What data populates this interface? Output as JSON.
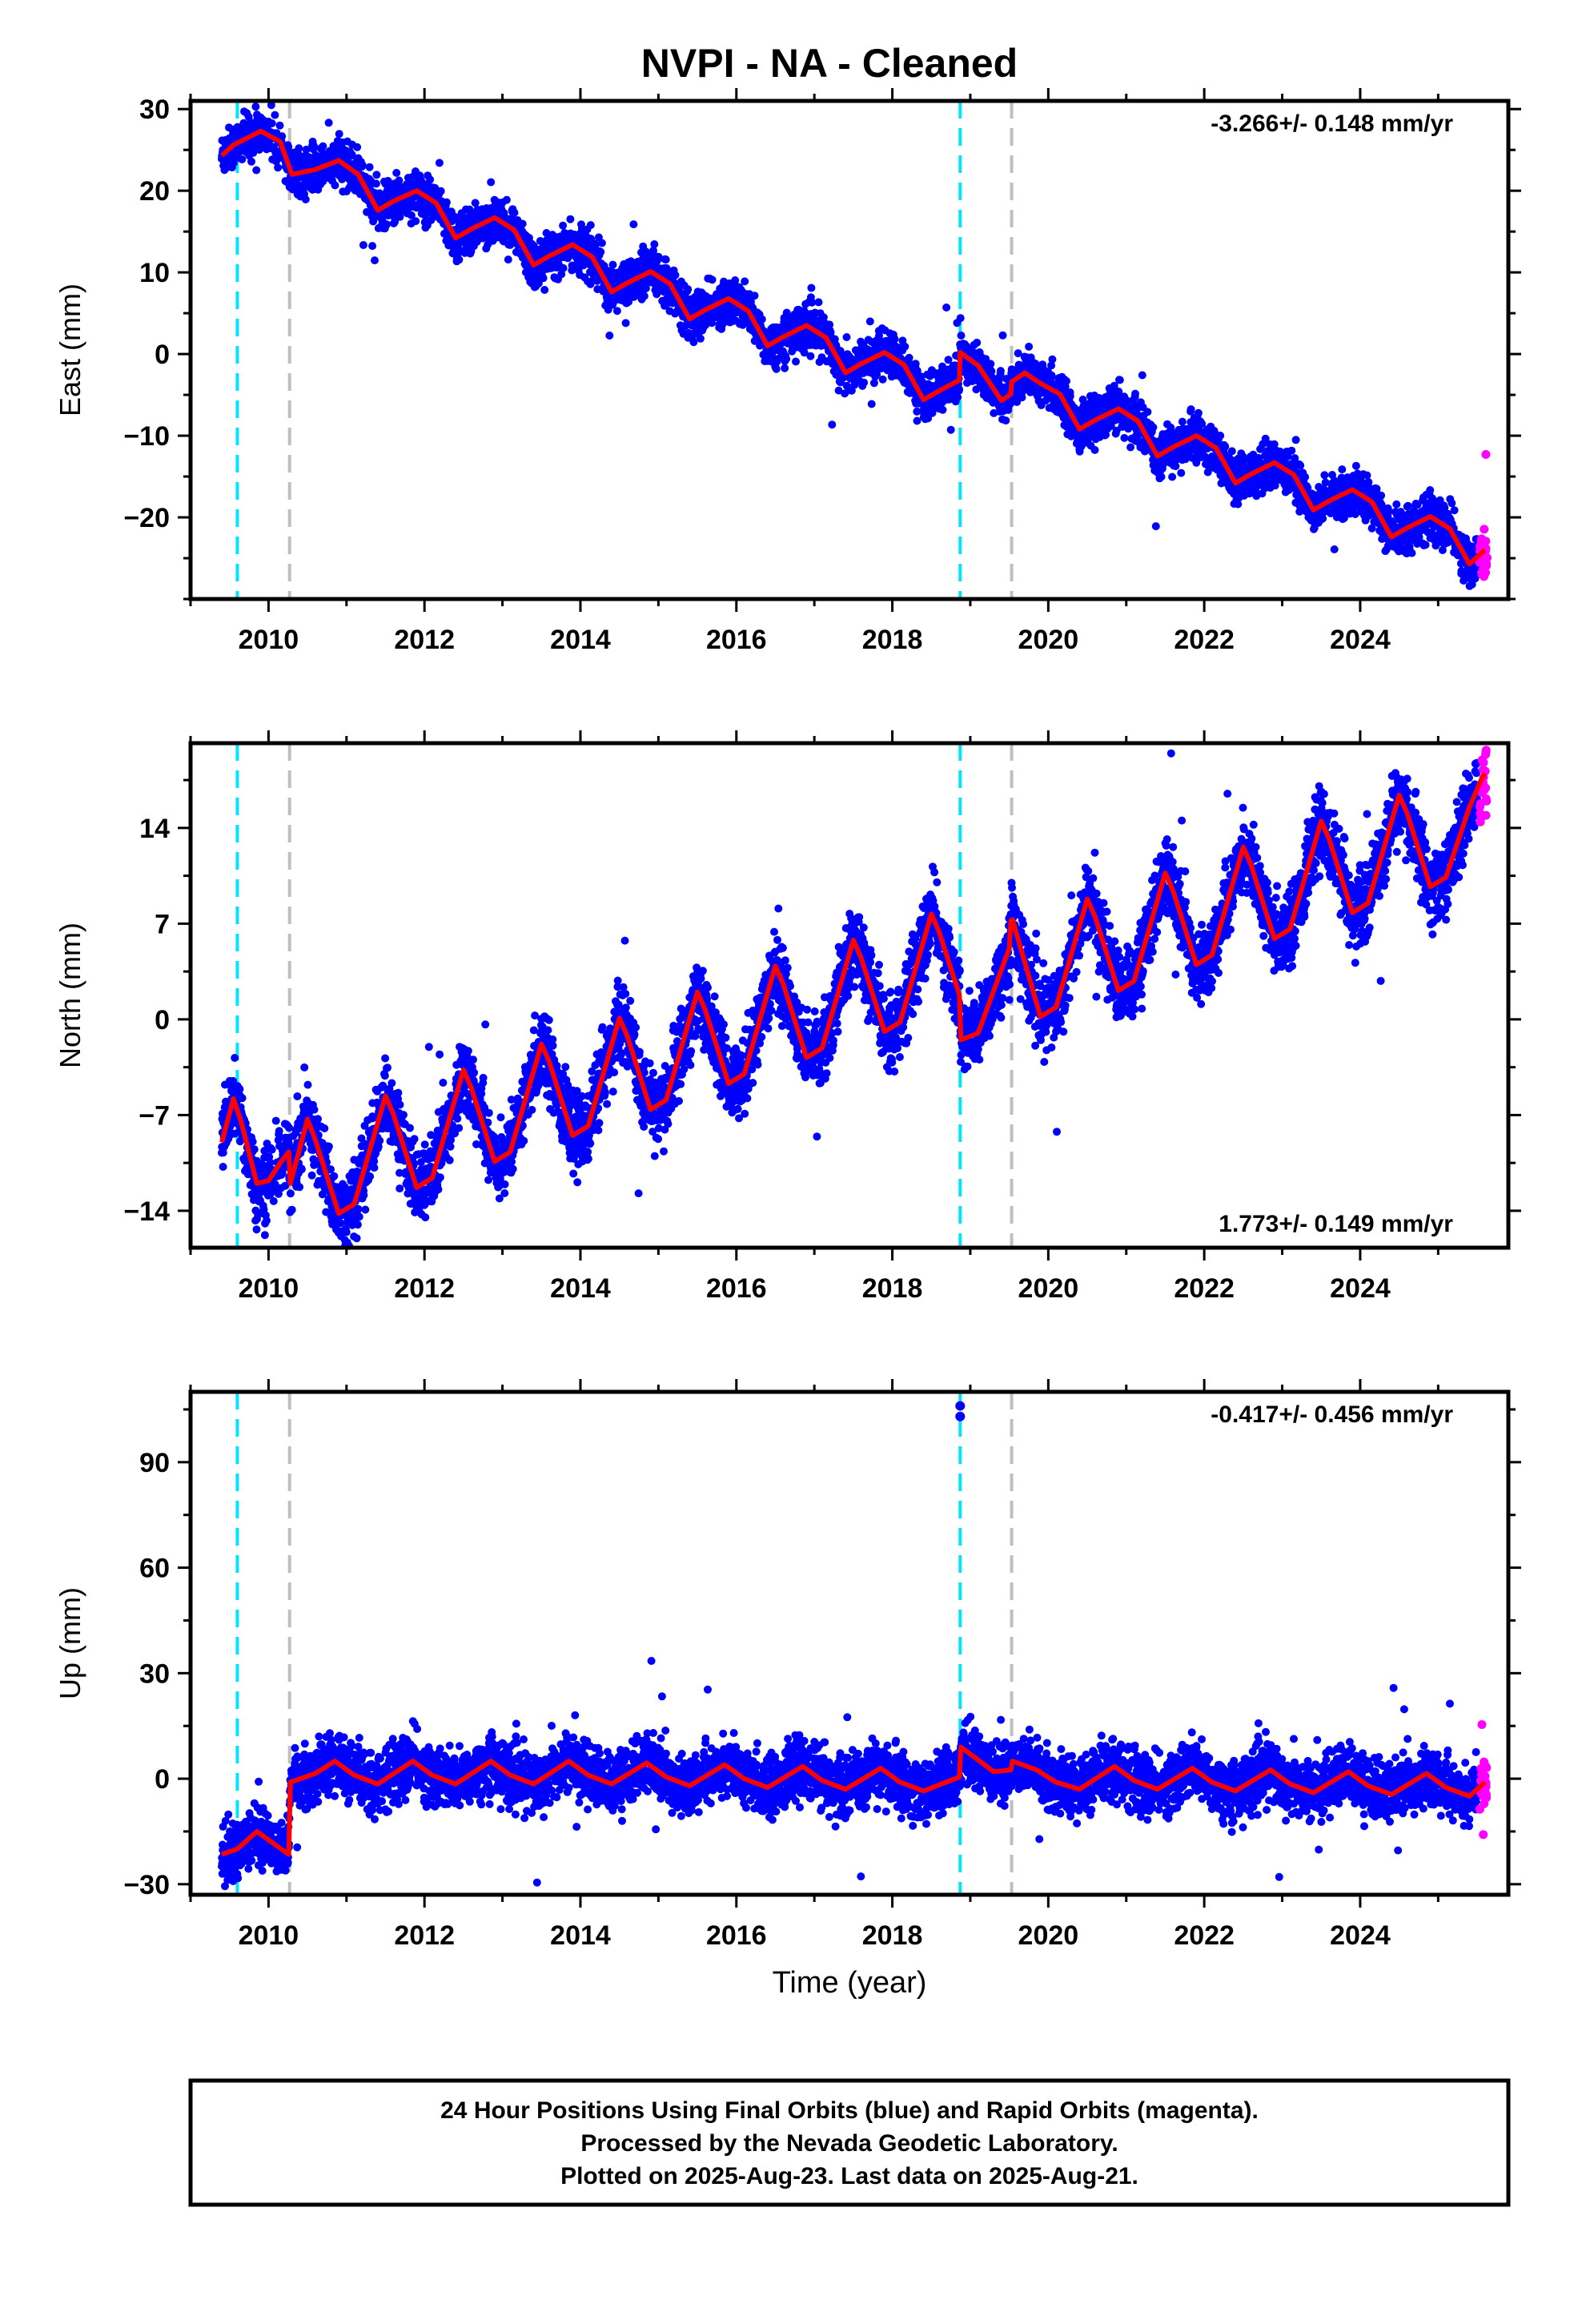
{
  "title": "NVPI  - NA - Cleaned",
  "footer": {
    "line1": "24 Hour Positions Using Final Orbits (blue) and Rapid Orbits (magenta).",
    "line2": "Processed by the Nevada Geodetic Laboratory.",
    "line3": "Plotted on 2025-Aug-23. Last data on 2025-Aug-21."
  },
  "colors": {
    "final_orbits": "#0000ff",
    "rapid_orbits": "#ff00ff",
    "model_fit": "#ff0000",
    "equipment_change": "#00e5ff",
    "other_event": "#bfbfbf"
  },
  "chart_data": [
    {
      "type": "scatter",
      "ylabel": "East (mm)",
      "xlabel": "",
      "rate_label": "-3.266+/- 0.148 mm/yr",
      "rate_value": -3.266,
      "rate_sigma": 0.148,
      "xlim": [
        2009.0,
        2025.9
      ],
      "ylim": [
        -30,
        31
      ],
      "x_ticks": [
        2010,
        2012,
        2014,
        2016,
        2018,
        2020,
        2022,
        2024
      ],
      "y_ticks": [
        30,
        20,
        10,
        0,
        -10,
        -20
      ],
      "events_cyan": [
        2009.6,
        2018.87
      ],
      "events_gray": [
        2010.27,
        2019.53
      ],
      "series": [
        {
          "name": "model",
          "x": [
            2009.4,
            2009.55,
            2009.9,
            2010.15,
            2010.3,
            2010.6,
            2010.9,
            2011.15,
            2011.4,
            2011.6,
            2011.9,
            2012.15,
            2012.4,
            2012.6,
            2012.9,
            2013.15,
            2013.4,
            2013.6,
            2013.9,
            2014.15,
            2014.4,
            2014.6,
            2014.9,
            2015.15,
            2015.4,
            2015.6,
            2015.9,
            2016.15,
            2016.4,
            2016.6,
            2016.9,
            2017.15,
            2017.4,
            2017.6,
            2017.9,
            2018.15,
            2018.4,
            2018.6,
            2018.86,
            2018.87,
            2019.1,
            2019.4,
            2019.52,
            2019.53,
            2019.7,
            2019.9,
            2020.15,
            2020.4,
            2020.6,
            2020.9,
            2021.15,
            2021.4,
            2021.6,
            2021.9,
            2022.15,
            2022.4,
            2022.6,
            2022.9,
            2023.15,
            2023.4,
            2023.6,
            2023.9,
            2024.15,
            2024.4,
            2024.6,
            2024.9,
            2025.15,
            2025.4,
            2025.6
          ],
          "y": [
            24.3,
            25.6,
            27.3,
            26.0,
            22.0,
            22.6,
            23.7,
            22.0,
            17.6,
            18.7,
            20.0,
            18.5,
            14.2,
            15.3,
            16.7,
            15.2,
            10.9,
            12.0,
            13.4,
            11.9,
            7.6,
            8.7,
            10.1,
            8.6,
            4.3,
            5.4,
            6.8,
            5.3,
            1.0,
            2.1,
            3.5,
            2.0,
            -2.3,
            -1.2,
            0.2,
            -1.3,
            -5.6,
            -4.5,
            -3.2,
            0.2,
            -1.4,
            -5.7,
            -4.9,
            -3.4,
            -2.3,
            -3.6,
            -4.9,
            -9.2,
            -8.1,
            -6.7,
            -8.2,
            -12.5,
            -11.4,
            -10.0,
            -11.5,
            -15.8,
            -14.7,
            -13.3,
            -14.8,
            -19.1,
            -18.0,
            -16.6,
            -18.1,
            -22.4,
            -21.3,
            -19.9,
            -21.4,
            -25.7,
            -24.0
          ]
        }
      ]
    },
    {
      "type": "scatter",
      "ylabel": "North (mm)",
      "xlabel": "",
      "rate_label": "1.773+/- 0.149 mm/yr",
      "rate_value": 1.773,
      "rate_sigma": 0.149,
      "xlim": [
        2009.0,
        2025.9
      ],
      "ylim": [
        -16.7,
        20.2
      ],
      "x_ticks": [
        2010,
        2012,
        2014,
        2016,
        2018,
        2020,
        2022,
        2024
      ],
      "y_ticks": [
        14,
        7,
        0,
        -7,
        -14
      ],
      "events_cyan": [
        2009.6,
        2018.87
      ],
      "events_gray": [
        2010.27,
        2019.53
      ],
      "series": [
        {
          "name": "model",
          "x": [
            2009.4,
            2009.55,
            2009.65,
            2009.85,
            2010.0,
            2010.15,
            2010.26,
            2010.28,
            2010.5,
            2010.6,
            2010.9,
            2011.1,
            2011.5,
            2011.6,
            2011.9,
            2012.1,
            2012.5,
            2012.6,
            2012.9,
            2013.1,
            2013.5,
            2013.6,
            2013.9,
            2014.1,
            2014.5,
            2014.6,
            2014.9,
            2015.1,
            2015.5,
            2015.6,
            2015.9,
            2016.1,
            2016.5,
            2016.6,
            2016.9,
            2017.1,
            2017.5,
            2017.6,
            2017.9,
            2018.1,
            2018.5,
            2018.6,
            2018.86,
            2018.88,
            2019.1,
            2019.5,
            2019.52,
            2019.54,
            2019.9,
            2020.1,
            2020.5,
            2020.6,
            2020.9,
            2021.1,
            2021.5,
            2021.6,
            2021.9,
            2022.1,
            2022.5,
            2022.6,
            2022.9,
            2023.1,
            2023.5,
            2023.6,
            2023.9,
            2024.1,
            2024.5,
            2024.6,
            2024.9,
            2025.1,
            2025.4,
            2025.55,
            2025.6
          ],
          "y": [
            -9.0,
            -5.8,
            -7.5,
            -12.0,
            -11.8,
            -10.5,
            -9.7,
            -12.0,
            -7.3,
            -8.8,
            -14.2,
            -13.5,
            -5.6,
            -6.9,
            -12.3,
            -11.6,
            -3.7,
            -5.0,
            -10.4,
            -9.7,
            -1.8,
            -3.1,
            -8.5,
            -7.8,
            0.1,
            -1.2,
            -6.6,
            -5.9,
            2.0,
            0.7,
            -4.7,
            -4.0,
            3.9,
            2.6,
            -2.8,
            -2.1,
            5.8,
            4.5,
            -0.9,
            -0.2,
            7.7,
            6.4,
            1.8,
            -1.5,
            -1.0,
            5.2,
            7.2,
            7.3,
            0.2,
            0.9,
            8.8,
            7.5,
            2.1,
            2.8,
            10.7,
            9.4,
            4.0,
            4.7,
            12.6,
            11.3,
            5.9,
            6.6,
            14.5,
            13.2,
            7.8,
            8.5,
            16.4,
            15.1,
            9.7,
            10.4,
            15.5,
            17.5,
            18.0
          ]
        }
      ]
    },
    {
      "type": "scatter",
      "ylabel": "Up (mm)",
      "xlabel": "Time (year)",
      "rate_label": "-0.417+/- 0.456 mm/yr",
      "rate_value": -0.417,
      "rate_sigma": 0.456,
      "xlim": [
        2009.0,
        2025.9
      ],
      "ylim": [
        -33,
        110
      ],
      "x_ticks": [
        2010,
        2012,
        2014,
        2016,
        2018,
        2020,
        2022,
        2024
      ],
      "y_ticks": [
        90,
        60,
        30,
        0,
        -30
      ],
      "events_cyan": [
        2009.6,
        2018.87
      ],
      "events_gray": [
        2010.27,
        2019.53
      ],
      "outliers": [
        [
          2018.87,
          103
        ],
        [
          2018.87,
          106
        ]
      ],
      "series": [
        {
          "name": "model",
          "x": [
            2009.4,
            2009.6,
            2009.85,
            2010.1,
            2010.26,
            2010.28,
            2010.6,
            2010.85,
            2011.1,
            2011.4,
            2011.85,
            2012.1,
            2012.4,
            2012.85,
            2013.1,
            2013.4,
            2013.85,
            2014.1,
            2014.4,
            2014.85,
            2015.1,
            2015.4,
            2015.85,
            2016.1,
            2016.4,
            2016.85,
            2017.1,
            2017.4,
            2017.85,
            2018.1,
            2018.4,
            2018.86,
            2018.88,
            2019.3,
            2019.52,
            2019.54,
            2019.85,
            2020.1,
            2020.4,
            2020.85,
            2021.1,
            2021.4,
            2021.85,
            2022.1,
            2022.4,
            2022.85,
            2023.1,
            2023.4,
            2023.85,
            2024.1,
            2024.4,
            2024.85,
            2025.1,
            2025.4,
            2025.6
          ],
          "y": [
            -21.5,
            -20.0,
            -15.0,
            -19.0,
            -21.5,
            -1.0,
            1.5,
            5.0,
            1.0,
            -1.5,
            5.0,
            1.0,
            -1.5,
            5.0,
            1.0,
            -1.5,
            5.0,
            1.0,
            -1.5,
            4.5,
            0.5,
            -2.0,
            4.0,
            0.0,
            -2.5,
            3.5,
            -0.5,
            -3.0,
            3.0,
            -1.0,
            -3.5,
            0.5,
            9.0,
            2.0,
            2.5,
            5.0,
            2.5,
            -1.0,
            -3.0,
            3.5,
            -0.5,
            -3.0,
            3.0,
            -1.0,
            -3.5,
            2.5,
            -1.5,
            -4.0,
            2.0,
            -2.0,
            -4.5,
            1.5,
            -2.5,
            -5.0,
            -1.0
          ]
        }
      ]
    }
  ]
}
